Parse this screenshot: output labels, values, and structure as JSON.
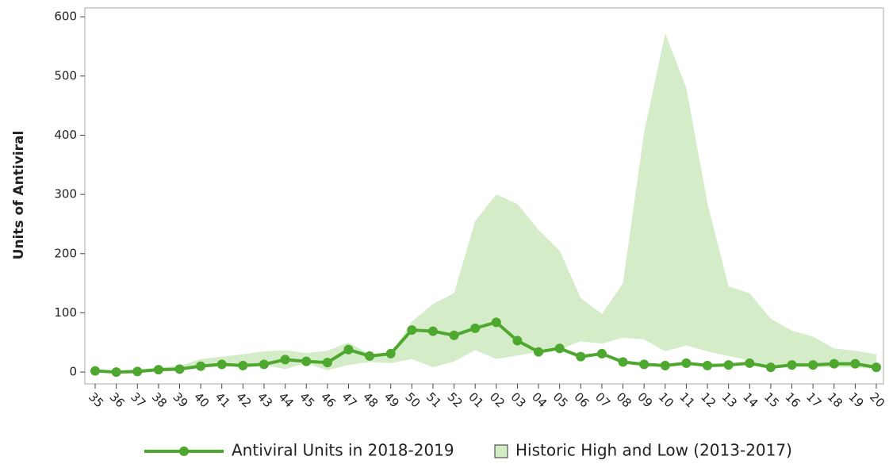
{
  "chart_data": {
    "type": "line",
    "y_label": "Units of Antiviral",
    "categories": [
      "35",
      "36",
      "37",
      "38",
      "39",
      "40",
      "41",
      "42",
      "43",
      "44",
      "45",
      "46",
      "47",
      "48",
      "49",
      "50",
      "51",
      "52",
      "01",
      "02",
      "03",
      "04",
      "05",
      "06",
      "07",
      "08",
      "09",
      "10",
      "11",
      "12",
      "13",
      "14",
      "15",
      "16",
      "17",
      "18",
      "19",
      "20"
    ],
    "series": [
      {
        "name": "Antiviral Units in 2018-2019",
        "color": "#4ea72e",
        "values": [
          2,
          0,
          1,
          4,
          5,
          10,
          13,
          11,
          13,
          21,
          18,
          16,
          38,
          27,
          31,
          71,
          69,
          62,
          74,
          84,
          53,
          34,
          40,
          26,
          31,
          17,
          13,
          11,
          15,
          11,
          12,
          15,
          8,
          12,
          12,
          14,
          14,
          8
        ]
      },
      {
        "name": "Historic High and Low (2013-2017)",
        "color": "#d5ecc9",
        "high": [
          3,
          2,
          5,
          8,
          10,
          22,
          26,
          30,
          35,
          37,
          32,
          36,
          50,
          30,
          30,
          85,
          115,
          133,
          255,
          300,
          284,
          240,
          205,
          125,
          98,
          150,
          405,
          572,
          480,
          285,
          145,
          133,
          90,
          70,
          60,
          40,
          36,
          30
        ],
        "low": [
          0,
          0,
          0,
          2,
          3,
          8,
          10,
          10,
          12,
          5,
          15,
          3,
          12,
          17,
          15,
          22,
          8,
          18,
          37,
          22,
          28,
          34,
          38,
          52,
          48,
          58,
          55,
          35,
          45,
          35,
          27,
          20,
          8,
          10,
          8,
          8,
          8,
          5
        ]
      }
    ],
    "ylim": [
      -20,
      615
    ],
    "yticks": [
      0,
      100,
      200,
      300,
      400,
      500,
      600
    ]
  }
}
